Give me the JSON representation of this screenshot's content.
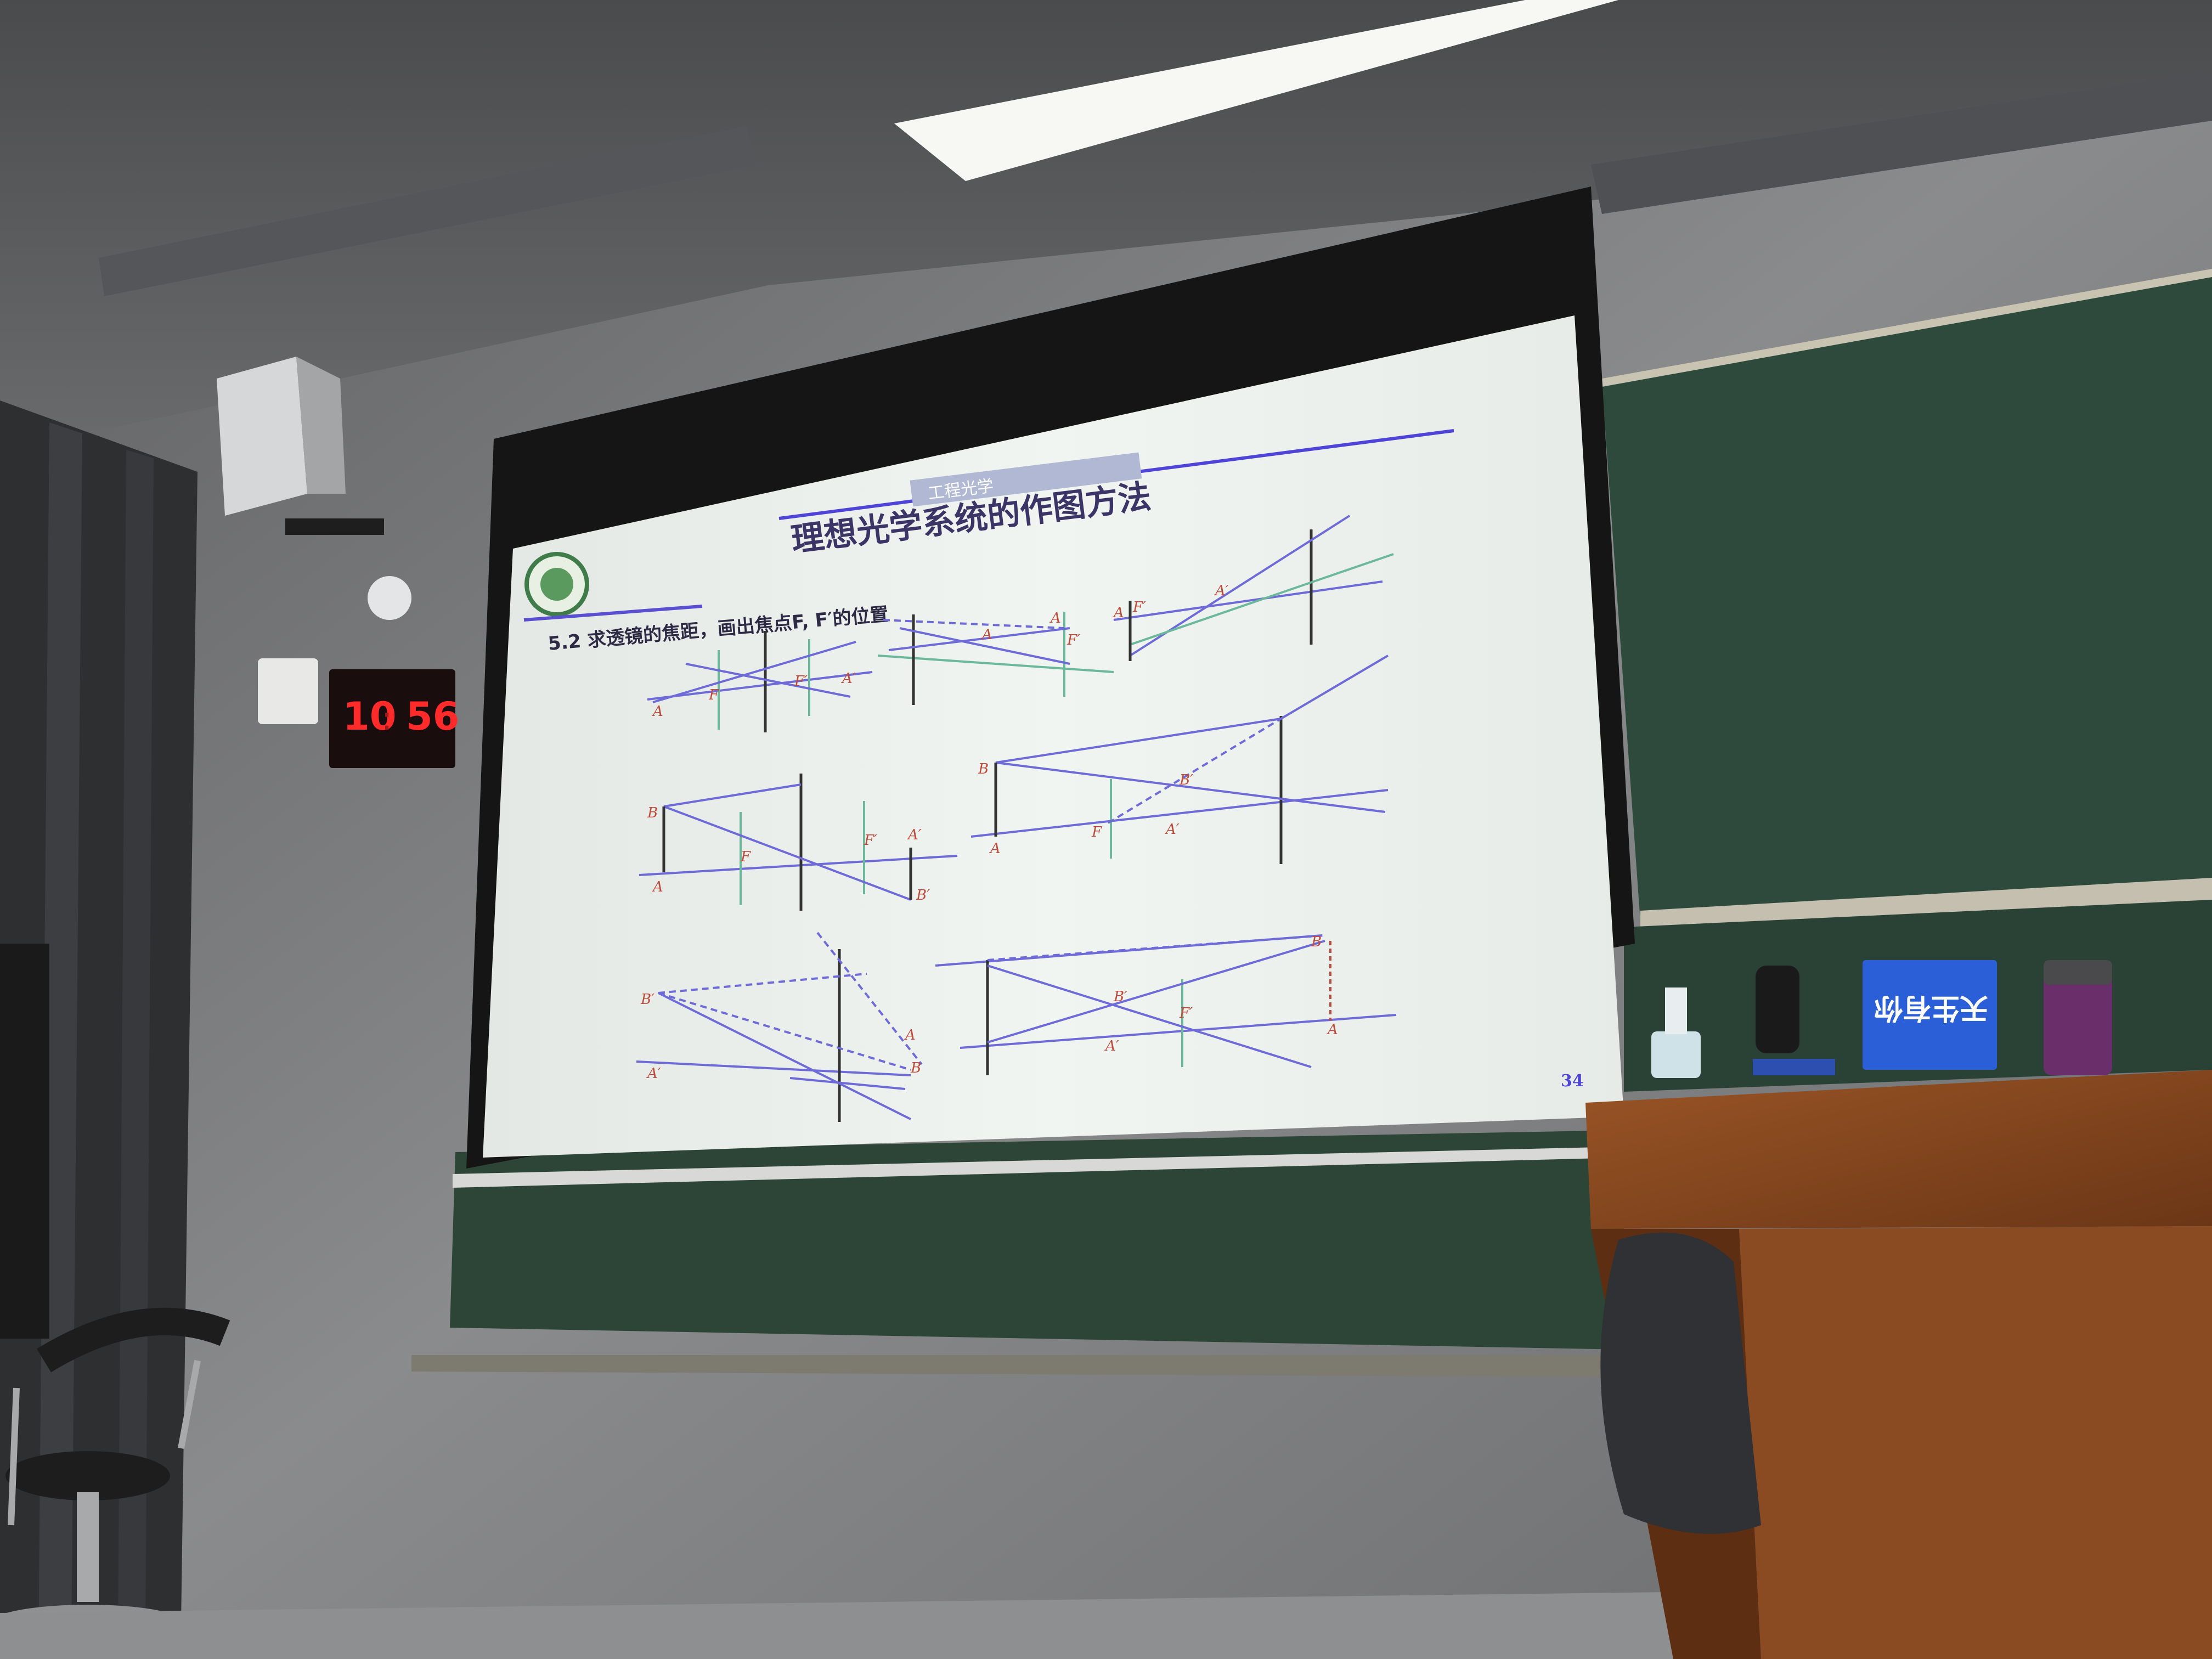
{
  "clock": {
    "hours": "10",
    "separator": ":",
    "minutes": "56"
  },
  "slide": {
    "header_tab": "工程光学",
    "title": "理想光学系统的作图方法",
    "subtitle": "5.2 求透镜的焦距，画出焦点F, F′的位置",
    "page_number": "34",
    "labels": {
      "A": "A",
      "A_prime": "A′",
      "B": "B",
      "B_prime": "B′",
      "F": "F",
      "F_prime": "F′"
    }
  },
  "desk_items": {
    "box_text": "天生有你"
  },
  "colors": {
    "wall": "#7c7d7f",
    "screen": "#eef2ee",
    "chalkboard": "#2f4a3c",
    "podium": "#8a4a22",
    "rule_line": "#5a4fd0",
    "title": "#3a3566"
  }
}
